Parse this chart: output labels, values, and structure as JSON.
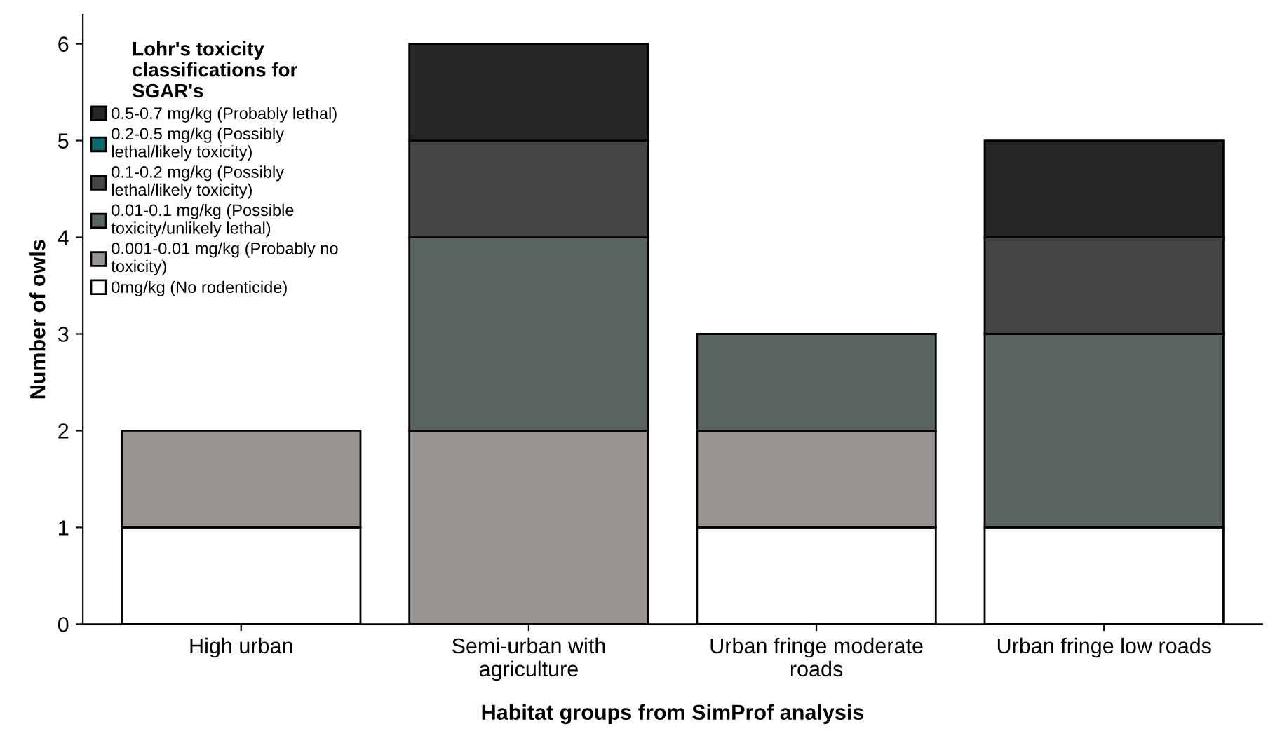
{
  "chart_data": {
    "type": "bar",
    "stacked": true,
    "xlabel": "Habitat groups from SimProf analysis",
    "ylabel": "Number of owls",
    "legend_title": "Lohr's toxicity\nclassifications for\nSGAR's",
    "legend": "top left",
    "grid": false,
    "categories": [
      "High urban",
      "Semi-urban with\nagriculture",
      "Urban fringe moderate\nroads",
      "Urban fringe low roads"
    ],
    "ylim": [
      0,
      6.3
    ],
    "yticks": [
      0,
      1,
      2,
      3,
      4,
      5,
      6
    ],
    "series": [
      {
        "name": "0mg/kg (No rodenticide)",
        "color": "#ffffff",
        "values": [
          1,
          0,
          1,
          1
        ]
      },
      {
        "name": "0.001-0.01 mg/kg (Probably no\ntoxicity)",
        "color": "#9a9593",
        "values": [
          1,
          2,
          1,
          0
        ]
      },
      {
        "name": "0.01-0.1 mg/kg (Possible\ntoxicity/unlikely lethal)",
        "color": "#5b655f",
        "values": [
          0,
          2,
          1,
          2
        ]
      },
      {
        "name": "0.1-0.2 mg/kg (Possibly\nlethal/likely toxicity)",
        "color": "#454545",
        "values": [
          0,
          1,
          0,
          1
        ]
      },
      {
        "name": "0.2-0.5 mg/kg (Possibly\nlethal/likely toxicity)",
        "color": "#0f6b6b",
        "values": [
          0,
          0,
          0,
          0
        ]
      },
      {
        "name": "0.5-0.7 mg/kg (Probably lethal)",
        "color": "#262626",
        "values": [
          0,
          1,
          0,
          1
        ]
      }
    ]
  }
}
